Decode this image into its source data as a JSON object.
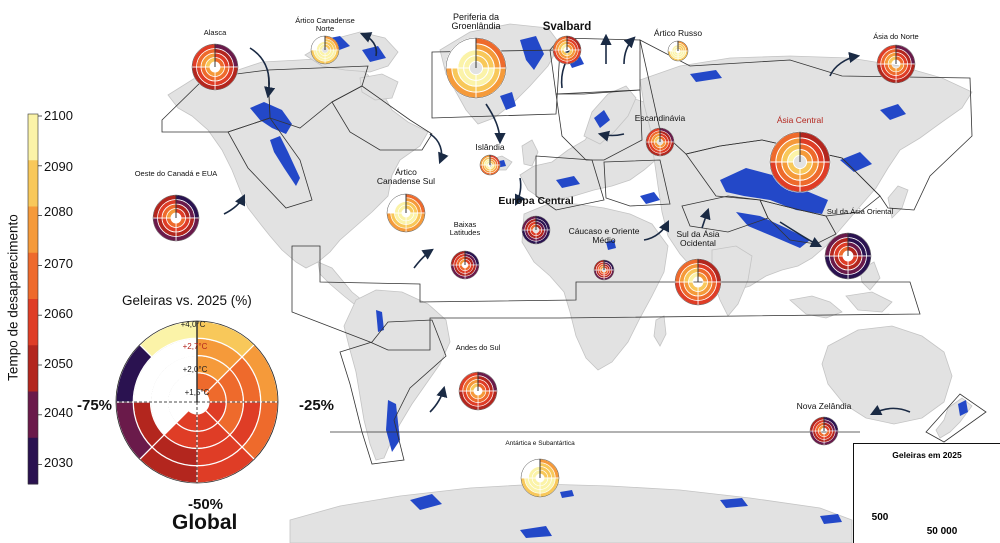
{
  "colors": {
    "ocean": "#ffffff",
    "land": "#e2e2e2",
    "land_stroke": "#c4c4c4",
    "glacier": "#2348c8",
    "arrow": "#1a2a44",
    "scale": [
      "#2a1250",
      "#6a1a4a",
      "#b3261e",
      "#df3d26",
      "#ee6a2c",
      "#f59a3a",
      "#f8c85a",
      "#fbf3a8"
    ]
  },
  "colorbar": {
    "title": "Tempo de desaparecimento",
    "ticks": [
      "2100",
      "2090",
      "2080",
      "2070",
      "2060",
      "2050",
      "2040",
      "2030"
    ]
  },
  "global_chart": {
    "title": "Geleiras vs. 2025 (%)",
    "label_left": "-75%",
    "label_right": "-25%",
    "label_bottom": "-50%",
    "name": "Global",
    "rings": [
      "+4,0°C",
      "+2,7°C",
      "+2,0°C",
      "+1,5°C"
    ]
  },
  "regions": [
    {
      "id": "alasca",
      "label": "Alasca",
      "style": "small",
      "size": 3,
      "palette": [
        2,
        3,
        4,
        5
      ]
    },
    {
      "id": "artico-norte",
      "label": "Ártico Canadense Norte",
      "style": "small",
      "size": 1,
      "palette": [
        6,
        7,
        7,
        7
      ]
    },
    {
      "id": "groenlandia",
      "label": "Periferia da Groenlândia",
      "style": "mid",
      "size": 4,
      "palette": [
        5,
        6,
        7,
        7
      ]
    },
    {
      "id": "svalbard",
      "label": "Svalbard",
      "style": "big",
      "size": 1,
      "palette": [
        3,
        4,
        5,
        6
      ]
    },
    {
      "id": "artico-russo",
      "label": "Ártico Russo",
      "style": "mid",
      "size": 0,
      "palette": [
        6,
        7,
        7,
        7
      ]
    },
    {
      "id": "asia-norte",
      "label": "Ásia do Norte",
      "style": "small",
      "size": 2,
      "palette": [
        2,
        3,
        4,
        5
      ]
    },
    {
      "id": "oeste-canada",
      "label": "Oeste do Canadá e EUA",
      "style": "small",
      "size": 3,
      "palette": [
        1,
        2,
        3,
        4
      ]
    },
    {
      "id": "artico-sul",
      "label": "Ártico Canadense Sul",
      "style": "mid",
      "size": 2,
      "palette": [
        5,
        6,
        7,
        7
      ]
    },
    {
      "id": "islandia",
      "label": "Islândia",
      "style": "mid",
      "size": 0,
      "palette": [
        4,
        5,
        6,
        7
      ]
    },
    {
      "id": "escandinavia",
      "label": "Escandinávia",
      "style": "mid",
      "size": 1,
      "palette": [
        2,
        3,
        4,
        5
      ]
    },
    {
      "id": "asia-central",
      "label": "Ásia Central",
      "style": "red",
      "size": 4,
      "palette": [
        3,
        4,
        5,
        6
      ]
    },
    {
      "id": "europa-central",
      "label": "Europa Central",
      "style": "big",
      "size": 1,
      "palette": [
        0,
        1,
        2,
        3
      ]
    },
    {
      "id": "baixas-latitudes",
      "label": "Baixas Latitudes",
      "style": "small",
      "size": 1,
      "palette": [
        1,
        2,
        3,
        4
      ]
    },
    {
      "id": "caucaso",
      "label": "Cáucaso e Oriente Médio",
      "style": "mid",
      "size": 0,
      "palette": [
        1,
        2,
        3,
        4
      ]
    },
    {
      "id": "sul-asia-ocidental",
      "label": "Sul da Ásia Ocidental",
      "style": "mid",
      "size": 3,
      "palette": [
        3,
        4,
        5,
        6
      ]
    },
    {
      "id": "sul-asia-oriental",
      "label": "Sul da Ásia Oriental",
      "style": "small",
      "size": 3,
      "palette": [
        0,
        1,
        2,
        3
      ]
    },
    {
      "id": "andes-sul",
      "label": "Andes do Sul",
      "style": "small",
      "size": 2,
      "palette": [
        2,
        3,
        4,
        5
      ]
    },
    {
      "id": "nova-zelandia",
      "label": "Nova Zelândia",
      "style": "mid",
      "size": 1,
      "palette": [
        1,
        2,
        3,
        4
      ]
    },
    {
      "id": "antartica",
      "label": "Antártica e Subantártica",
      "style": "small",
      "size": 2,
      "palette": [
        6,
        7,
        7,
        7
      ]
    }
  ],
  "legend": {
    "title": "Geleiras em 2025",
    "small_value": "500",
    "large_value": "50 000"
  }
}
